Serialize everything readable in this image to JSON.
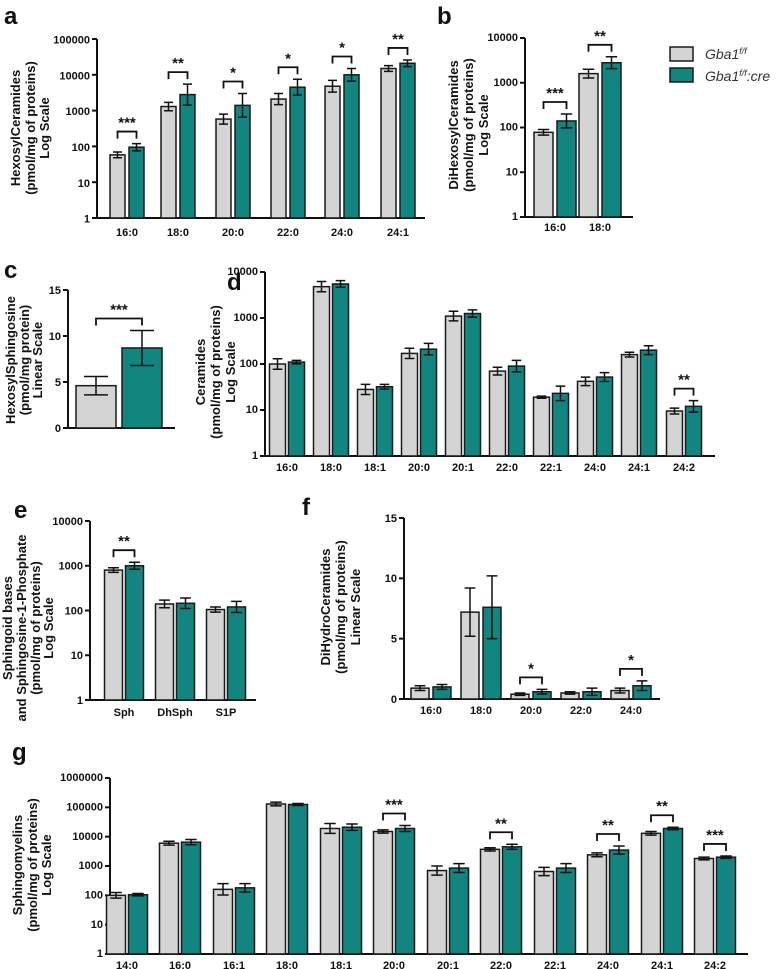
{
  "colors": {
    "control": "#d4d4d4",
    "cre": "#138580",
    "stroke": "#1a1a1a"
  },
  "legend": [
    {
      "base": "Gba1",
      "sup": "f/f",
      "suffix": ""
    },
    {
      "base": "Gba1",
      "sup": "f/f",
      "suffix": ":cre"
    }
  ],
  "chart_data": [
    {
      "id": "a",
      "panel_label": "a",
      "type": "bar",
      "scale": "log",
      "ylabel": [
        "HexosylCeramides",
        "(pmol/mg of proteins)",
        "Log Scale"
      ],
      "ylim": [
        1,
        100000
      ],
      "yticks": [
        1,
        10,
        100,
        1000,
        10000,
        100000
      ],
      "categories": [
        "16:0",
        "18:0",
        "20:0",
        "22:0",
        "24:0",
        "24:1"
      ],
      "series": [
        {
          "name": "Gba1f/f",
          "values": [
            58,
            1300,
            580,
            2100,
            4800,
            15000
          ],
          "err_upper": [
            70,
            1700,
            800,
            3000,
            7000,
            18000
          ]
        },
        {
          "name": "Gba1f/f:cre",
          "values": [
            95,
            2800,
            1400,
            4500,
            10000,
            21000
          ],
          "err_upper": [
            120,
            5500,
            3000,
            7500,
            15000,
            26000
          ]
        }
      ],
      "significance": [
        "***",
        "**",
        "*",
        "*",
        "*",
        "**"
      ]
    },
    {
      "id": "b",
      "panel_label": "b",
      "type": "bar",
      "scale": "log",
      "ylabel": [
        "DiHexosylCeramides",
        "(pmol/mg of proteins)",
        "Log Scale"
      ],
      "ylim": [
        1,
        10000
      ],
      "yticks": [
        1,
        10,
        100,
        1000,
        10000
      ],
      "categories": [
        "16:0",
        "18:0"
      ],
      "series": [
        {
          "name": "Gba1f/f",
          "values": [
            78,
            1600
          ],
          "err_upper": [
            90,
            2000
          ]
        },
        {
          "name": "Gba1f/f:cre",
          "values": [
            140,
            2800
          ],
          "err_upper": [
            200,
            3800
          ]
        }
      ],
      "significance": [
        "***",
        "**"
      ]
    },
    {
      "id": "c",
      "panel_label": "c",
      "type": "bar",
      "scale": "linear",
      "ylabel": [
        "HexosylSphingosine",
        "(pmol/mg protein)",
        "Linear Scale"
      ],
      "ylim": [
        0,
        15
      ],
      "yticks": [
        0,
        5,
        10,
        15
      ],
      "series": [
        {
          "name": "Gba1f/f",
          "values": [
            4.6
          ],
          "err_upper": [
            5.6
          ]
        },
        {
          "name": "Gba1f/f:cre",
          "values": [
            8.7
          ],
          "err_upper": [
            10.6
          ]
        }
      ],
      "significance": [
        "***"
      ]
    },
    {
      "id": "d",
      "panel_label": "d",
      "type": "bar",
      "scale": "log",
      "ylabel": [
        "Ceramides",
        "(pmol/mg of proteins)",
        "Log Scale"
      ],
      "ylim": [
        1,
        10000
      ],
      "yticks": [
        1,
        10,
        100,
        1000,
        10000
      ],
      "categories": [
        "16:0",
        "18:0",
        "18:1",
        "20:0",
        "20:1",
        "22:0",
        "22:1",
        "24:0",
        "24:1",
        "24:2"
      ],
      "series": [
        {
          "name": "Gba1f/f",
          "values": [
            100,
            4800,
            28,
            170,
            1100,
            70,
            19,
            42,
            160,
            9.5
          ],
          "err_upper": [
            130,
            6200,
            36,
            220,
            1400,
            85,
            20,
            52,
            180,
            11
          ]
        },
        {
          "name": "Gba1f/f:cre",
          "values": [
            110,
            5500,
            32,
            210,
            1250,
            90,
            23,
            52,
            200,
            12
          ],
          "err_upper": [
            120,
            6500,
            36,
            280,
            1500,
            120,
            33,
            65,
            250,
            16
          ]
        }
      ],
      "significance": [
        "",
        "",
        "",
        "",
        "",
        "",
        "",
        "",
        "",
        "**"
      ]
    },
    {
      "id": "e",
      "panel_label": "e",
      "type": "bar",
      "scale": "log",
      "ylabel": [
        "Sphingoid bases",
        "and Sphingosine-1-Phosphate",
        "(pmol/mg of proteins)",
        "Log Scale"
      ],
      "ylim": [
        1,
        10000
      ],
      "yticks": [
        1,
        10,
        100,
        1000,
        10000
      ],
      "categories": [
        "Sph",
        "DhSph",
        "S1P"
      ],
      "series": [
        {
          "name": "Gba1f/f",
          "values": [
            800,
            140,
            105
          ],
          "err_upper": [
            900,
            170,
            120
          ]
        },
        {
          "name": "Gba1f/f:cre",
          "values": [
            1000,
            145,
            120
          ],
          "err_upper": [
            1200,
            190,
            160
          ]
        }
      ],
      "significance": [
        "**",
        "",
        ""
      ]
    },
    {
      "id": "f",
      "panel_label": "f",
      "type": "bar",
      "scale": "linear",
      "ylabel": [
        "DiHydroCeramides",
        "(pmol/mg of proteins)",
        "Linear Scale"
      ],
      "ylim": [
        0,
        15
      ],
      "yticks": [
        0,
        5,
        10,
        15
      ],
      "categories": [
        "16:0",
        "18:0",
        "20:0",
        "22:0",
        "24:0"
      ],
      "series": [
        {
          "name": "Gba1f/f",
          "values": [
            0.9,
            7.2,
            0.4,
            0.5,
            0.7
          ],
          "err_upper": [
            1.1,
            9.2,
            0.5,
            0.6,
            0.9
          ]
        },
        {
          "name": "Gba1f/f:cre",
          "values": [
            1.0,
            7.6,
            0.6,
            0.6,
            1.1
          ],
          "err_upper": [
            1.2,
            10.2,
            0.8,
            0.9,
            1.5
          ]
        }
      ],
      "significance": [
        "",
        "",
        "*",
        "",
        "*"
      ]
    },
    {
      "id": "g",
      "panel_label": "g",
      "type": "bar",
      "scale": "log",
      "ylabel": [
        "Sphingomyelins",
        "(pmol/mg of proteins)",
        "Log Scale"
      ],
      "ylim": [
        1,
        1000000
      ],
      "yticks": [
        1,
        10,
        100,
        1000,
        10000,
        100000,
        1000000
      ],
      "categories": [
        "14:0",
        "16:0",
        "16:1",
        "18:0",
        "18:1",
        "20:0",
        "20:1",
        "22:0",
        "22:1",
        "24:0",
        "24:1",
        "24:2"
      ],
      "series": [
        {
          "name": "Gba1f/f",
          "values": [
            100,
            6000,
            160,
            130000,
            19000,
            15000,
            700,
            3700,
            650,
            2400,
            13000,
            1800
          ],
          "err_upper": [
            125,
            7000,
            250,
            150000,
            28000,
            17000,
            1000,
            4200,
            900,
            2800,
            15000,
            2000
          ]
        },
        {
          "name": "Gba1f/f:cre",
          "values": [
            105,
            6500,
            180,
            125000,
            21000,
            19000,
            850,
            4500,
            850,
            3500,
            19000,
            2000
          ],
          "err_upper": [
            115,
            8000,
            250,
            135000,
            27000,
            24000,
            1200,
            5500,
            1200,
            4800,
            21000,
            2200
          ]
        }
      ],
      "significance": [
        "",
        "",
        "",
        "",
        "",
        "***",
        "",
        "**",
        "",
        "**",
        "**",
        "***"
      ]
    }
  ]
}
